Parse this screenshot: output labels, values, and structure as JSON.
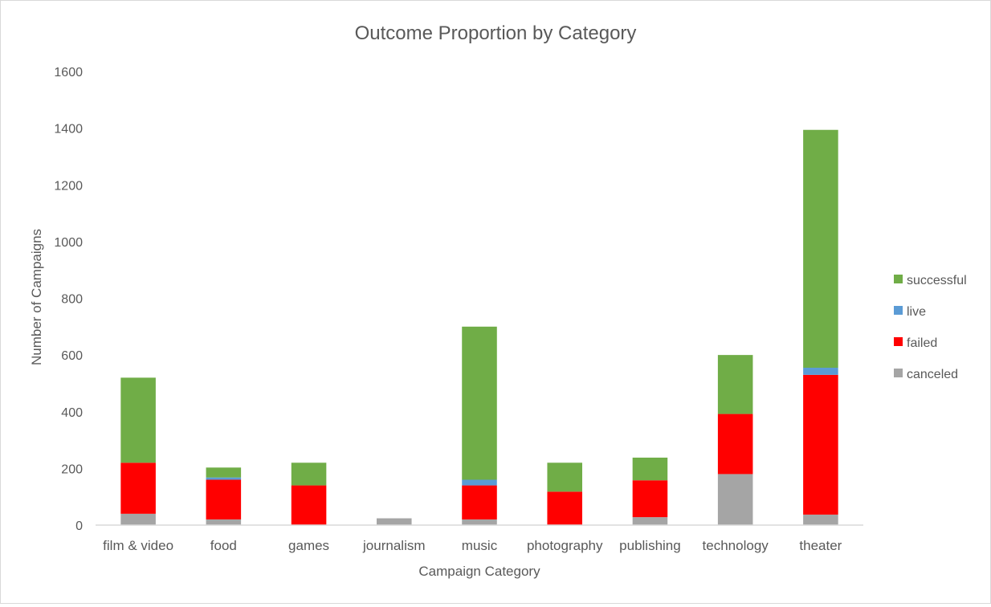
{
  "chart_data": {
    "type": "bar",
    "stacked": true,
    "title": "Outcome Proportion by Category",
    "xlabel": "Campaign Category",
    "ylabel": "Number of Campaigns",
    "ylim": [
      0,
      1600
    ],
    "yticks": [
      0,
      200,
      400,
      600,
      800,
      1000,
      1200,
      1400,
      1600
    ],
    "grid": false,
    "legend_position": "right",
    "categories": [
      "film & video",
      "food",
      "games",
      "journalism",
      "music",
      "photography",
      "publishing",
      "technology",
      "theater"
    ],
    "series": [
      {
        "name": "canceled",
        "color": "#a5a5a5",
        "values": [
          40,
          20,
          0,
          24,
          20,
          0,
          28,
          180,
          37
        ]
      },
      {
        "name": "failed",
        "color": "#ff0000",
        "values": [
          180,
          140,
          140,
          0,
          120,
          118,
          130,
          212,
          493
        ]
      },
      {
        "name": "live",
        "color": "#5b9bd5",
        "values": [
          0,
          8,
          0,
          0,
          20,
          0,
          0,
          0,
          25
        ]
      },
      {
        "name": "successful",
        "color": "#70ad47",
        "values": [
          300,
          35,
          80,
          0,
          540,
          102,
          80,
          208,
          839
        ]
      }
    ],
    "legend_order": [
      "successful",
      "live",
      "failed",
      "canceled"
    ]
  }
}
